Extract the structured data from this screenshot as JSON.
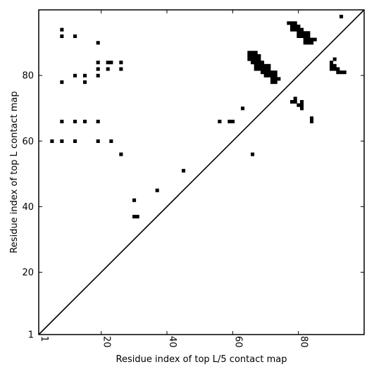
{
  "chart_data": {
    "type": "heatmap",
    "title": "",
    "xlabel": "Residue index of top L/5 contact map",
    "ylabel": "Residue index of top L contact map",
    "xlim": [
      1,
      100
    ],
    "ylim": [
      1,
      100
    ],
    "xticks": [
      1,
      20,
      40,
      60,
      80
    ],
    "yticks": [
      1,
      20,
      40,
      60,
      80
    ],
    "diagonal": true,
    "contacts": [
      [
        5,
        60
      ],
      [
        8,
        60
      ],
      [
        12,
        60
      ],
      [
        19,
        60
      ],
      [
        23,
        60
      ],
      [
        26,
        56
      ],
      [
        8,
        66
      ],
      [
        12,
        66
      ],
      [
        15,
        66
      ],
      [
        19,
        66
      ],
      [
        8,
        78
      ],
      [
        15,
        78
      ],
      [
        12,
        80
      ],
      [
        15,
        80
      ],
      [
        19,
        80
      ],
      [
        19,
        82
      ],
      [
        22,
        82
      ],
      [
        26,
        82
      ],
      [
        19,
        84
      ],
      [
        22,
        84
      ],
      [
        23,
        84
      ],
      [
        26,
        84
      ],
      [
        19,
        90
      ],
      [
        8,
        92
      ],
      [
        12,
        92
      ],
      [
        8,
        94
      ],
      [
        30,
        42
      ],
      [
        30,
        37
      ],
      [
        31,
        37
      ],
      [
        37,
        45
      ],
      [
        45,
        51
      ],
      [
        56,
        66
      ],
      [
        59,
        66
      ],
      [
        60,
        66
      ],
      [
        63,
        70
      ],
      [
        66,
        56
      ],
      [
        65,
        85
      ],
      [
        65,
        86
      ],
      [
        65,
        87
      ],
      [
        66,
        84
      ],
      [
        66,
        85
      ],
      [
        66,
        86
      ],
      [
        66,
        87
      ],
      [
        67,
        82
      ],
      [
        67,
        83
      ],
      [
        67,
        84
      ],
      [
        67,
        85
      ],
      [
        67,
        86
      ],
      [
        67,
        87
      ],
      [
        68,
        82
      ],
      [
        68,
        83
      ],
      [
        68,
        84
      ],
      [
        68,
        85
      ],
      [
        68,
        86
      ],
      [
        69,
        81
      ],
      [
        69,
        82
      ],
      [
        69,
        83
      ],
      [
        69,
        84
      ],
      [
        70,
        80
      ],
      [
        70,
        81
      ],
      [
        70,
        82
      ],
      [
        70,
        83
      ],
      [
        71,
        80
      ],
      [
        71,
        81
      ],
      [
        71,
        82
      ],
      [
        71,
        83
      ],
      [
        72,
        78
      ],
      [
        72,
        79
      ],
      [
        72,
        80
      ],
      [
        72,
        81
      ],
      [
        73,
        78
      ],
      [
        73,
        79
      ],
      [
        73,
        80
      ],
      [
        73,
        81
      ],
      [
        74,
        79
      ],
      [
        77,
        96
      ],
      [
        78,
        94
      ],
      [
        78,
        95
      ],
      [
        78,
        96
      ],
      [
        79,
        94
      ],
      [
        79,
        95
      ],
      [
        79,
        96
      ],
      [
        80,
        92
      ],
      [
        80,
        93
      ],
      [
        80,
        94
      ],
      [
        80,
        95
      ],
      [
        81,
        92
      ],
      [
        81,
        93
      ],
      [
        81,
        94
      ],
      [
        82,
        90
      ],
      [
        82,
        91
      ],
      [
        82,
        92
      ],
      [
        82,
        93
      ],
      [
        83,
        90
      ],
      [
        83,
        91
      ],
      [
        83,
        92
      ],
      [
        83,
        93
      ],
      [
        84,
        90
      ],
      [
        84,
        91
      ],
      [
        85,
        91
      ],
      [
        78,
        72
      ],
      [
        79,
        72
      ],
      [
        79,
        73
      ],
      [
        80,
        71
      ],
      [
        81,
        70
      ],
      [
        81,
        71
      ],
      [
        81,
        72
      ],
      [
        84,
        66
      ],
      [
        84,
        67
      ],
      [
        90,
        82
      ],
      [
        90,
        83
      ],
      [
        90,
        84
      ],
      [
        91,
        82
      ],
      [
        91,
        83
      ],
      [
        92,
        82
      ],
      [
        92,
        81
      ],
      [
        93,
        81
      ],
      [
        94,
        81
      ],
      [
        91,
        85
      ],
      [
        93,
        98
      ]
    ]
  }
}
